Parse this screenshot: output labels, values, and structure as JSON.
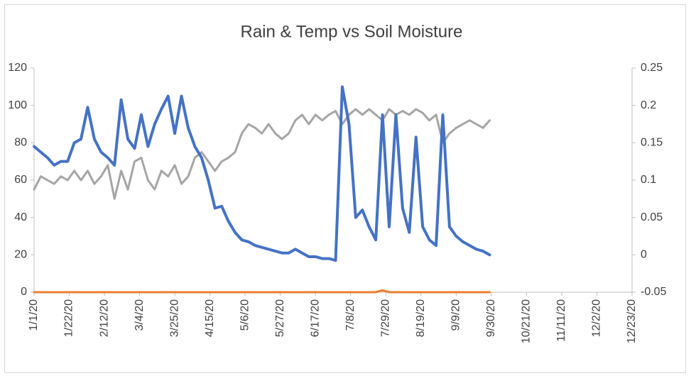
{
  "chart_data": {
    "type": "line",
    "title": "Rain & Temp vs Soil Moisture",
    "x": [
      "1/1/20",
      "1/5/20",
      "1/9/20",
      "1/13/20",
      "1/17/20",
      "1/21/20",
      "1/25/20",
      "1/29/20",
      "2/2/20",
      "2/6/20",
      "2/10/20",
      "2/14/20",
      "2/18/20",
      "2/22/20",
      "2/26/20",
      "3/1/20",
      "3/5/20",
      "3/9/20",
      "3/13/20",
      "3/17/20",
      "3/21/20",
      "3/25/20",
      "3/29/20",
      "4/2/20",
      "4/6/20",
      "4/10/20",
      "4/14/20",
      "4/18/20",
      "4/22/20",
      "4/26/20",
      "4/30/20",
      "5/4/20",
      "5/8/20",
      "5/12/20",
      "5/16/20",
      "5/20/20",
      "5/24/20",
      "5/28/20",
      "6/1/20",
      "6/5/20",
      "6/9/20",
      "6/13/20",
      "6/17/20",
      "6/21/20",
      "6/25/20",
      "6/29/20",
      "7/3/20",
      "7/7/20",
      "7/11/20",
      "7/15/20",
      "7/19/20",
      "7/23/20",
      "7/27/20",
      "7/31/20",
      "8/4/20",
      "8/8/20",
      "8/12/20",
      "8/16/20",
      "8/20/20",
      "8/24/20",
      "8/28/20",
      "9/1/20",
      "9/5/20",
      "9/9/20",
      "9/13/20",
      "9/17/20",
      "9/21/20",
      "9/25/20",
      "9/29/20"
    ],
    "series": [
      {
        "color": "#a5a5a5",
        "axis": "y",
        "values": [
          55,
          62,
          60,
          58,
          62,
          60,
          65,
          60,
          65,
          58,
          62,
          68,
          50,
          65,
          55,
          70,
          72,
          60,
          55,
          65,
          62,
          68,
          58,
          62,
          72,
          75,
          70,
          65,
          70,
          72,
          75,
          85,
          90,
          88,
          85,
          90,
          85,
          82,
          85,
          92,
          95,
          90,
          95,
          92,
          95,
          97,
          90,
          95,
          98,
          95,
          98,
          95,
          92,
          98,
          95,
          97,
          95,
          98,
          96,
          92,
          95,
          80,
          85,
          88,
          90,
          92,
          90,
          88,
          92
        ]
      },
      {
        "color": "#ed7d31",
        "axis": "y",
        "values": [
          0,
          0,
          0,
          0,
          0,
          0,
          0,
          0,
          0,
          0,
          0,
          0,
          0,
          0,
          0,
          0,
          0,
          0,
          0,
          0,
          0,
          0,
          0,
          0,
          0,
          0,
          0,
          0,
          0,
          0,
          0,
          0,
          0,
          0,
          0,
          0,
          0,
          0,
          0,
          0,
          0,
          0,
          0,
          0,
          0,
          0,
          0,
          0,
          0,
          0,
          0,
          0,
          1,
          0,
          0,
          0,
          0,
          0,
          0,
          0,
          0,
          0,
          0,
          0,
          0,
          0,
          0,
          0,
          0
        ]
      },
      {
        "color": "#4472c4",
        "axis": "y2",
        "values": [
          0.145,
          0.1375,
          0.13,
          0.12,
          0.125,
          0.125,
          0.15,
          0.155,
          0.1975,
          0.155,
          0.1375,
          0.13,
          0.12,
          0.2075,
          0.155,
          0.1425,
          0.1875,
          0.145,
          0.175,
          0.195,
          0.2125,
          0.1625,
          0.2125,
          0.17,
          0.145,
          0.13,
          0.1,
          0.0625,
          0.065,
          0.045,
          0.03,
          0.02,
          0.0175,
          0.0125,
          0.01,
          0.0075,
          0.005,
          0.0025,
          0.0025,
          0.0075,
          0.0025,
          -0.0025,
          -0.0025,
          -0.005,
          -0.005,
          -0.0075,
          0.225,
          0.175,
          0.05,
          0.06,
          0.0375,
          0.02,
          0.1875,
          0.0375,
          0.1875,
          0.0625,
          0.03,
          0.1575,
          0.0375,
          0.02,
          0.0125,
          0.1875,
          0.0375,
          0.025,
          0.0175,
          0.0125,
          0.0075,
          0.005,
          0
        ]
      }
    ],
    "xlim": [
      "1/1/20",
      "12/23/20"
    ],
    "xticks": [
      "1/1/20",
      "1/22/20",
      "2/12/20",
      "3/4/20",
      "3/25/20",
      "4/15/20",
      "5/6/20",
      "5/27/20",
      "6/17/20",
      "7/8/20",
      "7/29/20",
      "8/19/20",
      "9/9/20",
      "9/30/20",
      "10/21/20",
      "11/11/20",
      "12/2/20",
      "12/23/20"
    ],
    "ylim": [
      0,
      120
    ],
    "yticks": [
      0,
      20,
      40,
      60,
      80,
      100,
      120
    ],
    "y2lim": [
      -0.05,
      0.25
    ],
    "y2ticks": [
      -0.05,
      0,
      0.05,
      0.1,
      0.15,
      0.2,
      0.25
    ],
    "grid": false
  }
}
